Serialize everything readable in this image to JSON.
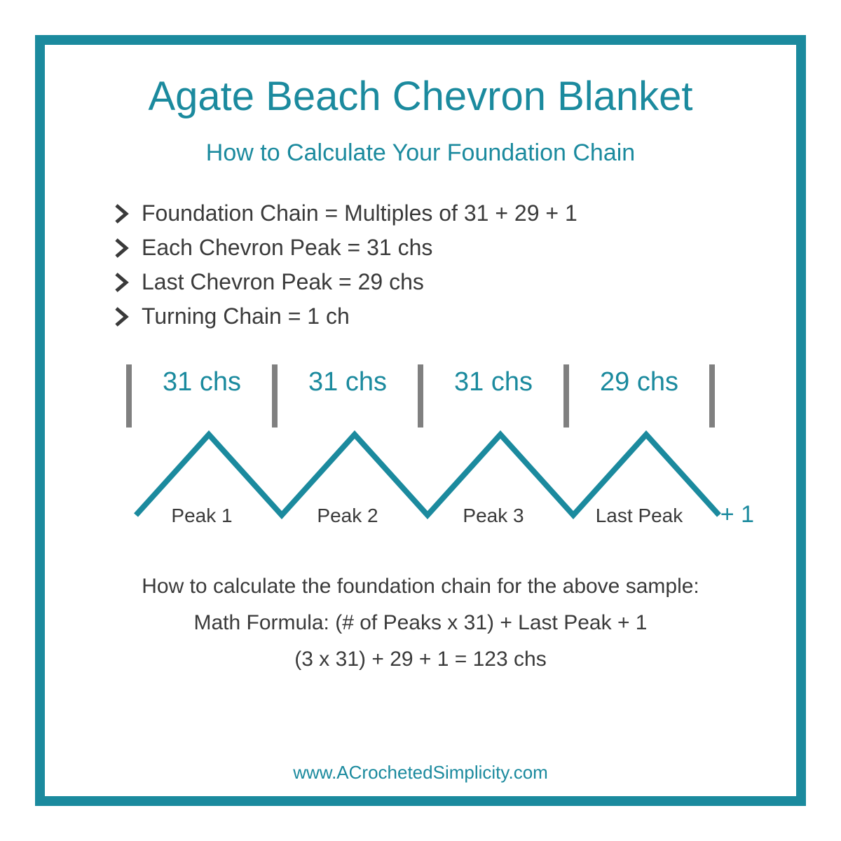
{
  "colors": {
    "teal": "#1b8a9e",
    "dark_text": "#3a3a3a",
    "gray_divider": "#808080",
    "chevron_line": "#1b8a9e",
    "border": "#1b8a9e",
    "background": "#ffffff"
  },
  "title": "Agate Beach Chevron Blanket",
  "subtitle": "How to Calculate Your Foundation Chain",
  "bullets": [
    "Foundation Chain =  Multiples of  31 + 29 + 1",
    "Each Chevron Peak =  31 chs",
    "Last Chevron Peak = 29 chs",
    "Turning Chain = 1 ch"
  ],
  "diagram": {
    "segment_labels": [
      "31 chs",
      "31 chs",
      "31 chs",
      "29 chs"
    ],
    "peak_labels": [
      "Peak 1",
      "Peak 2",
      "Peak 3",
      "Last Peak"
    ],
    "plus_label": "+ 1",
    "num_peaks": 4,
    "line_width": 8,
    "divider_width": 8,
    "divider_height": 90,
    "peak_width": 208,
    "peak_height": 115
  },
  "calc": {
    "intro": "How to calculate the foundation chain for the above sample:",
    "formula": "Math Formula:  (# of Peaks  x  31)  +  Last Peak  +  1",
    "example": "(3  x  31) + 29 + 1 = 123 chs"
  },
  "website": "www.ACrochetedSimplicity.com",
  "typography": {
    "title_fontsize": 58,
    "subtitle_fontsize": 34,
    "bullet_fontsize": 32,
    "segment_label_fontsize": 38,
    "peak_label_fontsize": 28,
    "calc_fontsize": 30,
    "website_fontsize": 26
  }
}
